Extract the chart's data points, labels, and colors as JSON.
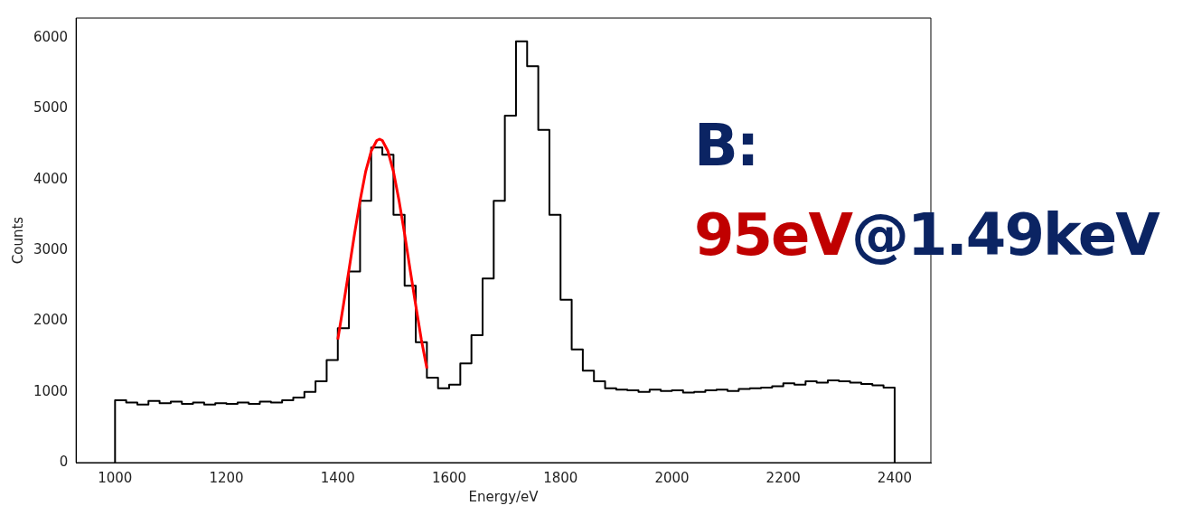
{
  "chart_data": {
    "type": "histogram",
    "xlabel": "Energy/eV",
    "ylabel": "Counts",
    "xlim": [
      930,
      2465
    ],
    "ylim": [
      0,
      6280
    ],
    "xticks": [
      1000,
      1200,
      1400,
      1600,
      1800,
      2000,
      2200,
      2400
    ],
    "yticks": [
      0,
      1000,
      2000,
      3000,
      4000,
      5000,
      6000
    ],
    "annotations": [
      "B:",
      "95eV",
      "@1.49keV"
    ],
    "series": [
      {
        "color": "#000000",
        "bins": [
          1000,
          1020,
          1040,
          1060,
          1080,
          1100,
          1120,
          1140,
          1160,
          1180,
          1200,
          1220,
          1240,
          1260,
          1280,
          1300,
          1320,
          1340,
          1360,
          1380,
          1400,
          1420,
          1440,
          1460,
          1480,
          1500,
          1520,
          1540,
          1560,
          1580,
          1600,
          1620,
          1640,
          1660,
          1680,
          1700,
          1720,
          1740,
          1760,
          1780,
          1800,
          1820,
          1840,
          1860,
          1880,
          1900,
          1920,
          1940,
          1960,
          1980,
          2000,
          2020,
          2040,
          2060,
          2080,
          2100,
          2120,
          2140,
          2160,
          2180,
          2200,
          2220,
          2240,
          2260,
          2280,
          2300,
          2320,
          2340,
          2360,
          2380,
          2400
        ],
        "values": [
          880,
          850,
          820,
          870,
          840,
          860,
          830,
          850,
          820,
          840,
          830,
          850,
          830,
          860,
          850,
          880,
          920,
          1000,
          1150,
          1450,
          1900,
          2700,
          3700,
          4450,
          4350,
          3500,
          2500,
          1700,
          1200,
          1050,
          1100,
          1400,
          1800,
          2600,
          3700,
          4900,
          5950,
          5600,
          4700,
          3500,
          2300,
          1600,
          1300,
          1150,
          1050,
          1030,
          1020,
          1000,
          1030,
          1010,
          1020,
          990,
          1000,
          1020,
          1030,
          1010,
          1040,
          1050,
          1060,
          1080,
          1120,
          1100,
          1150,
          1130,
          1160,
          1150,
          1130,
          1110,
          1090,
          1060
        ]
      },
      {
        "type": "line",
        "color": "#ff0000",
        "x": [
          1400,
          1410,
          1420,
          1430,
          1440,
          1450,
          1460,
          1470,
          1475,
          1480,
          1490,
          1500,
          1510,
          1520,
          1530,
          1540,
          1550,
          1560
        ],
        "values": [
          1740,
          2220,
          2720,
          3230,
          3700,
          4110,
          4400,
          4550,
          4570,
          4550,
          4400,
          4110,
          3700,
          3230,
          2720,
          2220,
          1740,
          1330
        ]
      }
    ]
  }
}
